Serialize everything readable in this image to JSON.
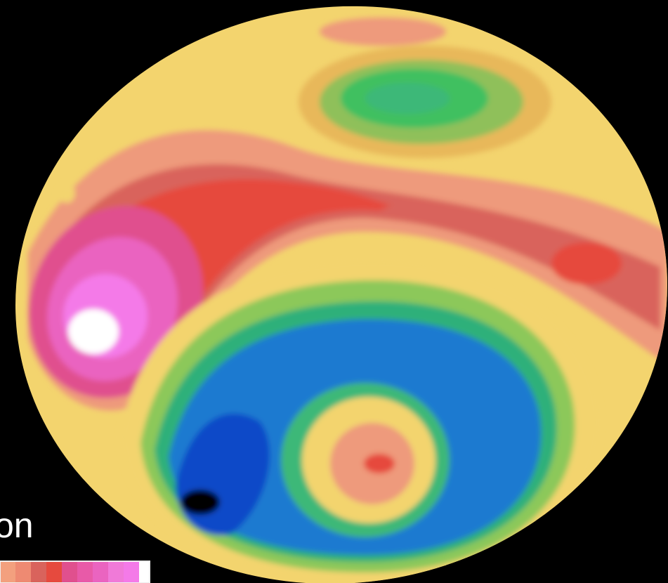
{
  "legend": {
    "label": "on"
  }
}
